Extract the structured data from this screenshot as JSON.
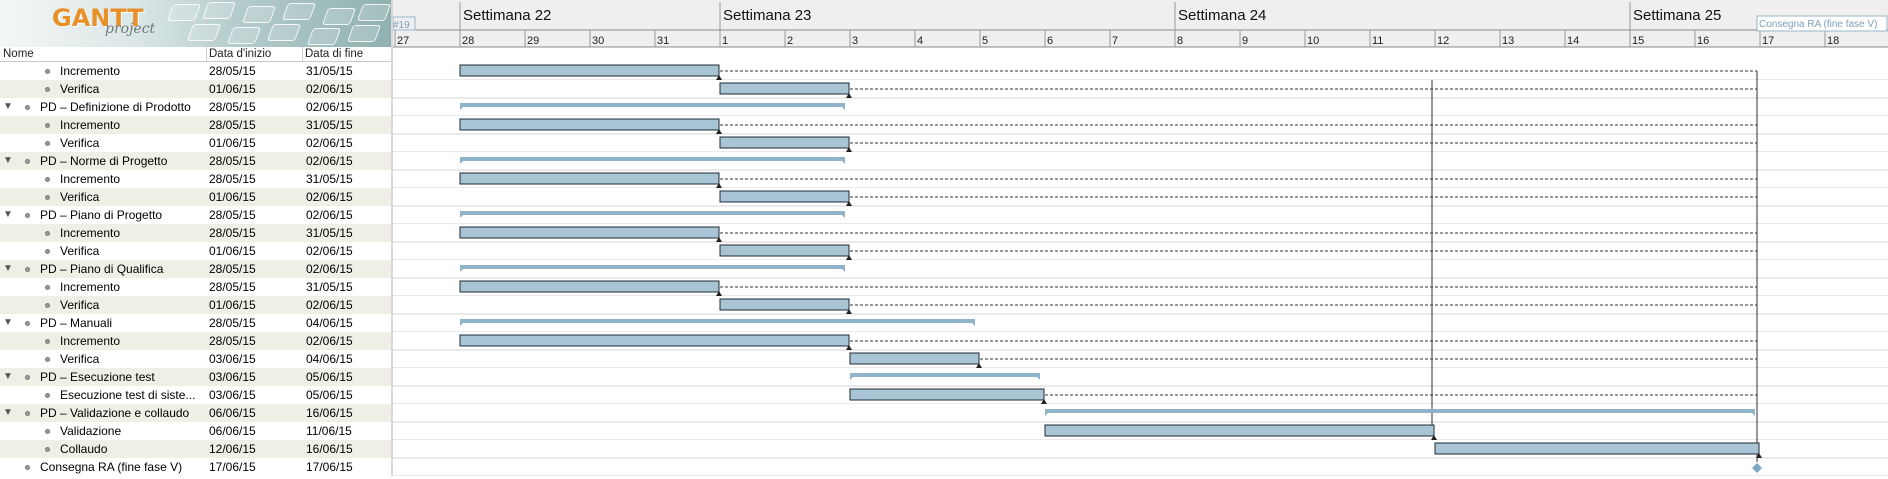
{
  "logo": {
    "text": "GANTT",
    "sub": "project"
  },
  "columns": {
    "name": "Nome",
    "start": "Data d'inizio",
    "end": "Data di fine"
  },
  "rows": [
    {
      "name": "Incremento",
      "start": "28/05/15",
      "end": "31/05/15",
      "level": 1,
      "group": false
    },
    {
      "name": "Verifica",
      "start": "01/06/15",
      "end": "02/06/15",
      "level": 1,
      "group": false
    },
    {
      "name": "PD – Definizione di Prodotto",
      "start": "28/05/15",
      "end": "02/06/15",
      "level": 0,
      "group": true
    },
    {
      "name": "Incremento",
      "start": "28/05/15",
      "end": "31/05/15",
      "level": 1,
      "group": false
    },
    {
      "name": "Verifica",
      "start": "01/06/15",
      "end": "02/06/15",
      "level": 1,
      "group": false
    },
    {
      "name": "PD – Norme di Progetto",
      "start": "28/05/15",
      "end": "02/06/15",
      "level": 0,
      "group": true
    },
    {
      "name": "Incremento",
      "start": "28/05/15",
      "end": "31/05/15",
      "level": 1,
      "group": false
    },
    {
      "name": "Verifica",
      "start": "01/06/15",
      "end": "02/06/15",
      "level": 1,
      "group": false
    },
    {
      "name": "PD – Piano di Progetto",
      "start": "28/05/15",
      "end": "02/06/15",
      "level": 0,
      "group": true
    },
    {
      "name": "Incremento",
      "start": "28/05/15",
      "end": "31/05/15",
      "level": 1,
      "group": false
    },
    {
      "name": "Verifica",
      "start": "01/06/15",
      "end": "02/06/15",
      "level": 1,
      "group": false
    },
    {
      "name": "PD – Piano di Qualifica",
      "start": "28/05/15",
      "end": "02/06/15",
      "level": 0,
      "group": true
    },
    {
      "name": "Incremento",
      "start": "28/05/15",
      "end": "31/05/15",
      "level": 1,
      "group": false
    },
    {
      "name": "Verifica",
      "start": "01/06/15",
      "end": "02/06/15",
      "level": 1,
      "group": false
    },
    {
      "name": "PD – Manuali",
      "start": "28/05/15",
      "end": "04/06/15",
      "level": 0,
      "group": true
    },
    {
      "name": "Incremento",
      "start": "28/05/15",
      "end": "02/06/15",
      "level": 1,
      "group": false
    },
    {
      "name": "Verifica",
      "start": "03/06/15",
      "end": "04/06/15",
      "level": 1,
      "group": false
    },
    {
      "name": "PD – Esecuzione test",
      "start": "03/06/15",
      "end": "05/06/15",
      "level": 0,
      "group": true
    },
    {
      "name": "Esecuzione test di siste...",
      "start": "03/06/15",
      "end": "05/06/15",
      "level": 1,
      "group": false
    },
    {
      "name": "PD – Validazione e collaudo",
      "start": "06/06/15",
      "end": "16/06/15",
      "level": 0,
      "group": true
    },
    {
      "name": "Validazione",
      "start": "06/06/15",
      "end": "11/06/15",
      "level": 1,
      "group": false
    },
    {
      "name": "Collaudo",
      "start": "12/06/15",
      "end": "16/06/15",
      "level": 1,
      "group": false
    },
    {
      "name": "Consegna RA (fine fase V)",
      "start": "17/06/15",
      "end": "17/06/15",
      "level": 0,
      "group": false,
      "milestone": true
    }
  ],
  "timeline": {
    "weeks": [
      {
        "label": "Settimana 22",
        "day": 28
      },
      {
        "label": "Settimana 23",
        "day": 1
      },
      {
        "label": "Settimana 24",
        "day": 8
      },
      {
        "label": "Settimana 25",
        "day": 15
      }
    ],
    "days": [
      "27",
      "28",
      "29",
      "30",
      "31",
      "1",
      "2",
      "3",
      "4",
      "5",
      "6",
      "7",
      "8",
      "9",
      "10",
      "11",
      "12",
      "13",
      "14",
      "15",
      "16",
      "17",
      "18"
    ],
    "today_marker": "#19",
    "milestone_label": "Consegna RA (fine fase V)"
  },
  "colors": {
    "bar": "#a9c4d4",
    "bar_border": "#1d2a33",
    "summary": "#8fb3c9",
    "milestone": "#7fa7c2",
    "alt_row": "#efefe6"
  }
}
